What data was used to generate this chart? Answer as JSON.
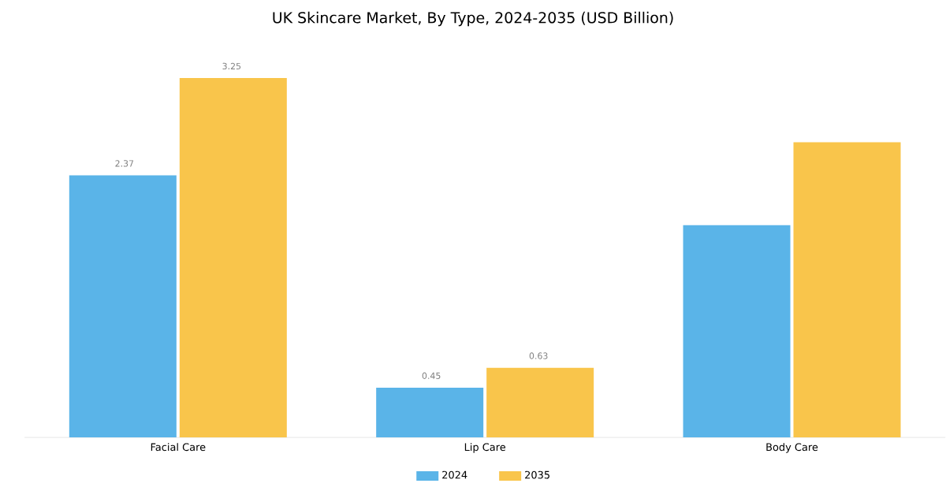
{
  "chart_data": {
    "type": "bar",
    "title": "UK Skincare Market, By Type, 2024-2035 (USD Billion)",
    "categories": [
      "Facial Care",
      "Lip Care",
      "Body Care"
    ],
    "series": [
      {
        "name": "2024",
        "color": "#5ab4e8",
        "values": [
          2.37,
          0.45,
          1.92
        ],
        "value_labels": [
          "2.37",
          "0.45",
          null
        ]
      },
      {
        "name": "2035",
        "color": "#f9c54b",
        "values": [
          3.25,
          0.63,
          2.67
        ],
        "value_labels": [
          "3.25",
          "0.63",
          null
        ]
      }
    ],
    "legend": "bottom"
  }
}
